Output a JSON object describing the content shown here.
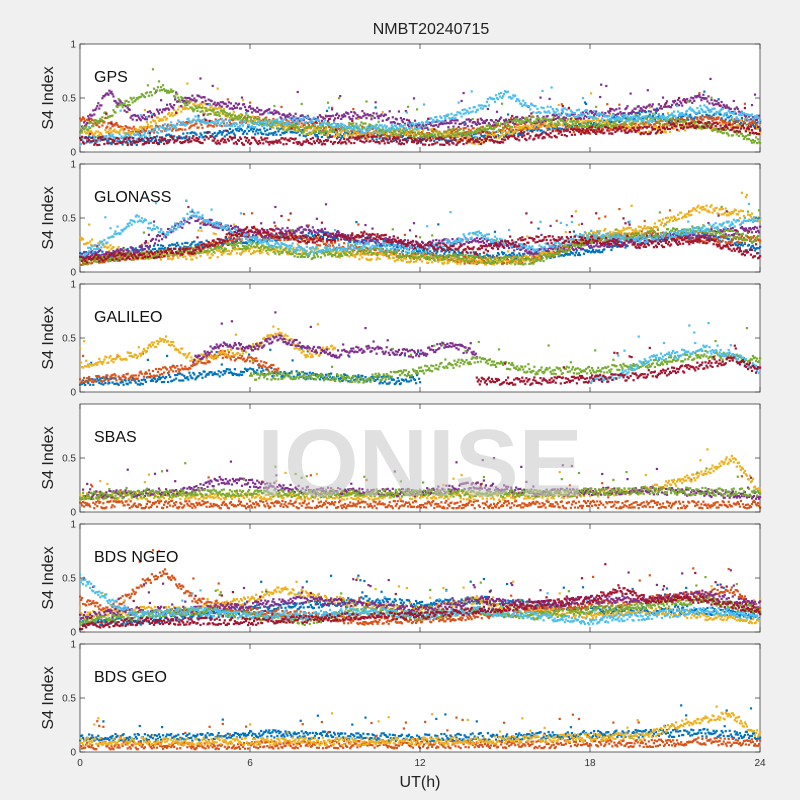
{
  "figure": {
    "title": "NMBT20240715",
    "watermark": "IONISE",
    "xlabel": "UT(h)",
    "xticks": [
      0,
      6,
      12,
      18,
      24
    ],
    "xlim": [
      0,
      24
    ],
    "background": "#f0f0f0",
    "axes_background": "#ffffff"
  },
  "palette": [
    "#0072BD",
    "#D95319",
    "#EDB120",
    "#7E2F8E",
    "#77AC30",
    "#4DBEEE",
    "#A2142F"
  ],
  "chart_data": [
    {
      "type": "scatter",
      "label": "GPS",
      "ylabel": "S4 Index",
      "ylim": [
        0,
        1
      ],
      "yticks": [
        0,
        0.5,
        1
      ],
      "xlim": [
        0,
        24
      ],
      "series": [
        {
          "color": "#0072BD",
          "x": [
            0,
            2,
            4,
            6,
            8,
            10,
            12,
            14,
            16,
            18,
            19,
            20,
            21,
            22,
            23,
            24
          ],
          "y": [
            0.12,
            0.1,
            0.15,
            0.2,
            0.18,
            0.15,
            0.12,
            0.15,
            0.2,
            0.25,
            0.3,
            0.35,
            0.3,
            0.35,
            0.3,
            0.25
          ]
        },
        {
          "color": "#D95319",
          "x": [
            0,
            2,
            4,
            6,
            8,
            10,
            12,
            14,
            16,
            18,
            20,
            22,
            24
          ],
          "y": [
            0.3,
            0.2,
            0.25,
            0.3,
            0.25,
            0.2,
            0.15,
            0.2,
            0.25,
            0.2,
            0.25,
            0.3,
            0.25
          ]
        },
        {
          "color": "#EDB120",
          "x": [
            0,
            2,
            4,
            6,
            8,
            10,
            12,
            14,
            16,
            18,
            20,
            22,
            24
          ],
          "y": [
            0.15,
            0.2,
            0.45,
            0.3,
            0.2,
            0.15,
            0.2,
            0.1,
            0.25,
            0.3,
            0.2,
            0.25,
            0.2
          ]
        },
        {
          "color": "#7E2F8E",
          "x": [
            0,
            1,
            2,
            4,
            6,
            8,
            10,
            12,
            16,
            18,
            20,
            22,
            24
          ],
          "y": [
            0.2,
            0.55,
            0.3,
            0.5,
            0.4,
            0.3,
            0.35,
            0.25,
            0.3,
            0.35,
            0.4,
            0.5,
            0.3
          ]
        },
        {
          "color": "#77AC30",
          "x": [
            0,
            2,
            3,
            4,
            6,
            8,
            10,
            12,
            14,
            16,
            18,
            20,
            22,
            24
          ],
          "y": [
            0.2,
            0.5,
            0.6,
            0.4,
            0.3,
            0.2,
            0.25,
            0.15,
            0.2,
            0.3,
            0.25,
            0.3,
            0.25,
            0.1
          ]
        },
        {
          "color": "#4DBEEE",
          "x": [
            0,
            2,
            4,
            6,
            8,
            10,
            12,
            14,
            15,
            16,
            18,
            20,
            22,
            24
          ],
          "y": [
            0.1,
            0.15,
            0.3,
            0.25,
            0.3,
            0.2,
            0.25,
            0.4,
            0.55,
            0.4,
            0.35,
            0.3,
            0.4,
            0.3
          ]
        },
        {
          "color": "#A2142F",
          "x": [
            0,
            2,
            4,
            6,
            8,
            10,
            12,
            14,
            16,
            18,
            20,
            22,
            24
          ],
          "y": [
            0.1,
            0.1,
            0.12,
            0.1,
            0.1,
            0.12,
            0.1,
            0.1,
            0.15,
            0.2,
            0.2,
            0.25,
            0.2
          ]
        }
      ]
    },
    {
      "type": "scatter",
      "label": "GLONASS",
      "ylabel": "S4 Index",
      "ylim": [
        0,
        1
      ],
      "yticks": [
        0,
        0.5,
        1
      ],
      "xlim": [
        0,
        24
      ],
      "series": [
        {
          "color": "#0072BD",
          "x": [
            0,
            2,
            4,
            6,
            8,
            10,
            12,
            14,
            16,
            18,
            20,
            22,
            24
          ],
          "y": [
            0.15,
            0.2,
            0.25,
            0.3,
            0.35,
            0.3,
            0.2,
            0.15,
            0.15,
            0.2,
            0.3,
            0.35,
            0.2
          ]
        },
        {
          "color": "#D95319",
          "x": [
            0,
            2,
            4,
            6,
            8,
            10,
            12,
            14,
            16,
            18,
            20,
            22,
            24
          ],
          "y": [
            0.1,
            0.15,
            0.2,
            0.35,
            0.3,
            0.2,
            0.15,
            0.1,
            0.12,
            0.3,
            0.35,
            0.3,
            0.3
          ]
        },
        {
          "color": "#EDB120",
          "x": [
            0,
            2,
            4,
            6,
            8,
            10,
            12,
            14,
            16,
            18,
            20,
            22,
            24
          ],
          "y": [
            0.3,
            0.15,
            0.15,
            0.2,
            0.2,
            0.15,
            0.12,
            0.1,
            0.12,
            0.35,
            0.4,
            0.6,
            0.5
          ]
        },
        {
          "color": "#7E2F8E",
          "x": [
            0,
            2,
            4,
            6,
            8,
            10,
            12,
            14,
            16,
            18,
            20,
            22,
            24
          ],
          "y": [
            0.15,
            0.2,
            0.5,
            0.35,
            0.4,
            0.3,
            0.25,
            0.3,
            0.2,
            0.25,
            0.3,
            0.35,
            0.4
          ]
        },
        {
          "color": "#77AC30",
          "x": [
            0,
            2,
            4,
            6,
            8,
            10,
            12,
            14,
            16,
            18,
            20,
            22,
            24
          ],
          "y": [
            0.1,
            0.15,
            0.2,
            0.25,
            0.15,
            0.2,
            0.15,
            0.12,
            0.1,
            0.3,
            0.35,
            0.4,
            0.3
          ]
        },
        {
          "color": "#4DBEEE",
          "x": [
            0,
            1,
            2,
            3,
            4,
            6,
            8,
            10,
            12,
            14,
            16,
            18,
            20,
            22,
            24
          ],
          "y": [
            0.15,
            0.3,
            0.5,
            0.35,
            0.55,
            0.3,
            0.2,
            0.25,
            0.2,
            0.35,
            0.2,
            0.35,
            0.3,
            0.4,
            0.5
          ]
        },
        {
          "color": "#A2142F",
          "x": [
            0,
            2,
            4,
            6,
            8,
            10,
            12,
            14,
            16,
            18,
            20,
            22,
            24
          ],
          "y": [
            0.12,
            0.15,
            0.2,
            0.4,
            0.3,
            0.35,
            0.25,
            0.2,
            0.3,
            0.3,
            0.25,
            0.3,
            0.15
          ]
        }
      ]
    },
    {
      "type": "scatter",
      "label": "GALILEO",
      "ylabel": "S4 Index",
      "ylim": [
        0,
        1
      ],
      "yticks": [
        0,
        0.5,
        1
      ],
      "xlim": [
        0,
        24
      ],
      "series": [
        {
          "color": "#0072BD",
          "x": [
            0,
            2,
            4,
            6,
            8,
            10,
            12
          ],
          "y": [
            0.1,
            0.1,
            0.15,
            0.2,
            0.15,
            0.12,
            0.1
          ]
        },
        {
          "color": "#D95319",
          "x": [
            0,
            2,
            4,
            5,
            6,
            7
          ],
          "y": [
            0.1,
            0.15,
            0.25,
            0.35,
            0.3,
            0.2
          ]
        },
        {
          "color": "#EDB120",
          "x": [
            0,
            1,
            2,
            3,
            4,
            6,
            7,
            8,
            9
          ],
          "y": [
            0.25,
            0.3,
            0.35,
            0.5,
            0.3,
            0.4,
            0.55,
            0.35,
            0.4
          ]
        },
        {
          "color": "#7E2F8E",
          "x": [
            4,
            5,
            6,
            7,
            9,
            10,
            12,
            13,
            14
          ],
          "y": [
            0.3,
            0.45,
            0.4,
            0.5,
            0.35,
            0.4,
            0.35,
            0.45,
            0.35
          ]
        },
        {
          "color": "#77AC30",
          "x": [
            6,
            8,
            10,
            12,
            14,
            16,
            18,
            20,
            22,
            24
          ],
          "y": [
            0.15,
            0.15,
            0.12,
            0.2,
            0.3,
            0.2,
            0.2,
            0.25,
            0.35,
            0.3
          ]
        },
        {
          "color": "#4DBEEE",
          "x": [
            18,
            19,
            20,
            21,
            22,
            23,
            24
          ],
          "y": [
            0.1,
            0.15,
            0.3,
            0.35,
            0.4,
            0.35,
            0.2
          ]
        },
        {
          "color": "#A2142F",
          "x": [
            14,
            16,
            18,
            20,
            21,
            22,
            23,
            24
          ],
          "y": [
            0.1,
            0.1,
            0.12,
            0.15,
            0.2,
            0.25,
            0.3,
            0.2
          ]
        }
      ]
    },
    {
      "type": "scatter",
      "label": "SBAS",
      "ylabel": "S4 Index",
      "ylim": [
        0,
        1
      ],
      "yticks": [
        0,
        0.5
      ],
      "xlim": [
        0,
        24
      ],
      "series": [
        {
          "color": "#D95319",
          "x": [
            0,
            4,
            8,
            12,
            16,
            20,
            24
          ],
          "y": [
            0.07,
            0.07,
            0.07,
            0.07,
            0.07,
            0.07,
            0.07
          ]
        },
        {
          "color": "#EDB120",
          "x": [
            0,
            4,
            8,
            12,
            16,
            20,
            22,
            23,
            24
          ],
          "y": [
            0.15,
            0.15,
            0.15,
            0.15,
            0.15,
            0.2,
            0.35,
            0.5,
            0.2
          ]
        },
        {
          "color": "#7E2F8E",
          "x": [
            0,
            4,
            5,
            8,
            12,
            14,
            16,
            20,
            24
          ],
          "y": [
            0.15,
            0.2,
            0.3,
            0.2,
            0.18,
            0.25,
            0.18,
            0.2,
            0.15
          ]
        },
        {
          "color": "#77AC30",
          "x": [
            0,
            4,
            8,
            12,
            16,
            20,
            24
          ],
          "y": [
            0.15,
            0.18,
            0.17,
            0.18,
            0.17,
            0.2,
            0.18
          ]
        }
      ]
    },
    {
      "type": "scatter",
      "label": "BDS NGEO",
      "ylabel": "S4 Index",
      "ylim": [
        0,
        1
      ],
      "yticks": [
        0,
        0.5,
        1
      ],
      "xlim": [
        0,
        24
      ],
      "series": [
        {
          "color": "#0072BD",
          "x": [
            0,
            2,
            4,
            6,
            8,
            10,
            12,
            14,
            16,
            18,
            20,
            22,
            24
          ],
          "y": [
            0.1,
            0.1,
            0.15,
            0.2,
            0.25,
            0.3,
            0.25,
            0.3,
            0.25,
            0.2,
            0.2,
            0.2,
            0.15
          ]
        },
        {
          "color": "#D95319",
          "x": [
            0,
            1,
            2,
            3,
            4,
            6,
            8,
            10,
            12,
            14,
            16,
            18,
            20,
            22,
            23,
            24
          ],
          "y": [
            0.3,
            0.2,
            0.4,
            0.55,
            0.3,
            0.2,
            0.15,
            0.1,
            0.12,
            0.15,
            0.2,
            0.25,
            0.3,
            0.35,
            0.4,
            0.2
          ]
        },
        {
          "color": "#EDB120",
          "x": [
            0,
            2,
            4,
            6,
            7,
            8,
            10,
            12,
            14,
            16,
            18,
            20,
            22,
            24
          ],
          "y": [
            0.15,
            0.2,
            0.2,
            0.3,
            0.4,
            0.35,
            0.25,
            0.2,
            0.3,
            0.2,
            0.15,
            0.2,
            0.15,
            0.1
          ]
        },
        {
          "color": "#7E2F8E",
          "x": [
            0,
            2,
            4,
            6,
            8,
            10,
            12,
            14,
            16,
            18,
            20,
            22,
            24
          ],
          "y": [
            0.15,
            0.2,
            0.2,
            0.25,
            0.3,
            0.25,
            0.2,
            0.3,
            0.25,
            0.3,
            0.3,
            0.35,
            0.25
          ]
        },
        {
          "color": "#77AC30",
          "x": [
            0,
            2,
            4,
            6,
            8,
            10,
            12,
            14,
            16,
            18,
            20,
            22,
            24
          ],
          "y": [
            0.1,
            0.15,
            0.2,
            0.15,
            0.1,
            0.2,
            0.15,
            0.2,
            0.15,
            0.2,
            0.25,
            0.3,
            0.2
          ]
        },
        {
          "color": "#4DBEEE",
          "x": [
            0,
            1,
            2,
            4,
            6,
            8,
            10,
            12,
            14,
            16,
            18,
            20,
            22,
            24
          ],
          "y": [
            0.5,
            0.3,
            0.15,
            0.2,
            0.15,
            0.15,
            0.2,
            0.15,
            0.2,
            0.15,
            0.1,
            0.15,
            0.2,
            0.15
          ]
        },
        {
          "color": "#A2142F",
          "x": [
            0,
            2,
            4,
            6,
            8,
            10,
            12,
            14,
            16,
            18,
            19,
            20,
            22,
            24
          ],
          "y": [
            0.05,
            0.1,
            0.1,
            0.1,
            0.12,
            0.15,
            0.15,
            0.2,
            0.25,
            0.3,
            0.4,
            0.3,
            0.3,
            0.2
          ]
        }
      ]
    },
    {
      "type": "scatter",
      "label": "BDS GEO",
      "ylabel": "S4 Index",
      "ylim": [
        0,
        1
      ],
      "yticks": [
        0,
        0.5,
        1
      ],
      "xlim": [
        0,
        24
      ],
      "series": [
        {
          "color": "#0072BD",
          "x": [
            0,
            4,
            7,
            8,
            12,
            16,
            20,
            22,
            24
          ],
          "y": [
            0.13,
            0.14,
            0.17,
            0.16,
            0.13,
            0.15,
            0.17,
            0.18,
            0.15
          ]
        },
        {
          "color": "#D95319",
          "x": [
            0,
            4,
            8,
            12,
            16,
            20,
            22,
            24
          ],
          "y": [
            0.06,
            0.06,
            0.07,
            0.07,
            0.07,
            0.08,
            0.1,
            0.08
          ]
        },
        {
          "color": "#EDB120",
          "x": [
            0,
            4,
            8,
            12,
            16,
            20,
            21,
            22,
            23,
            24
          ],
          "y": [
            0.1,
            0.1,
            0.1,
            0.1,
            0.12,
            0.15,
            0.25,
            0.3,
            0.35,
            0.15
          ]
        }
      ]
    }
  ]
}
